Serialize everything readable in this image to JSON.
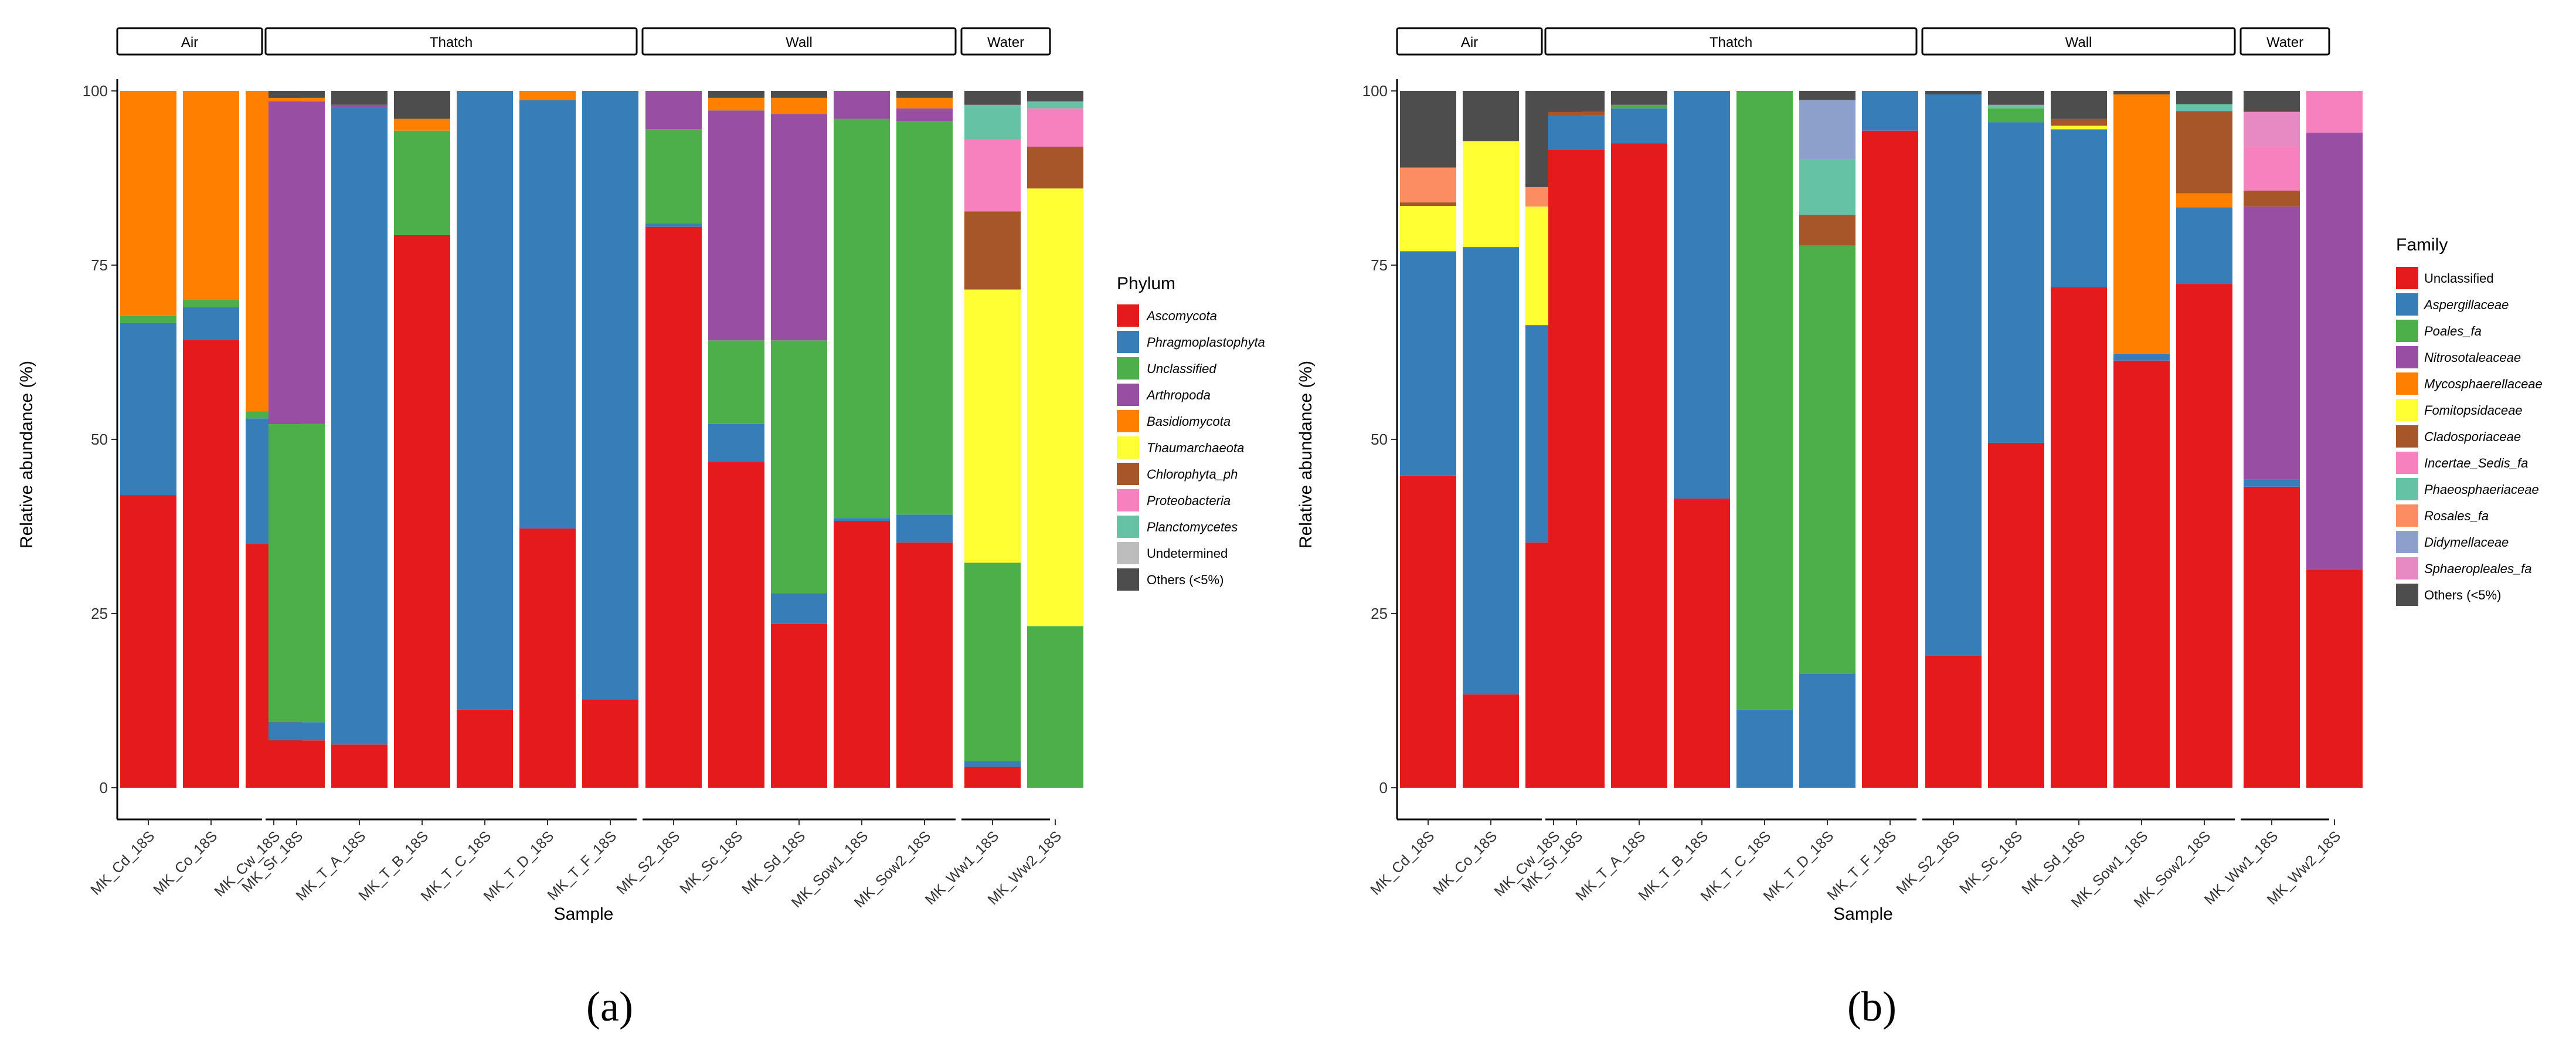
{
  "chart_data": [
    {
      "type": "bar",
      "stacked": true,
      "caption": "(a)",
      "xlabel": "Sample",
      "ylabel": "Relative abundance (%)",
      "ylim": [
        0,
        100
      ],
      "yticks": [
        "0",
        "25",
        "50",
        "75",
        "100"
      ],
      "grid": false,
      "legend_position": "right",
      "legend_title": "Phylum",
      "categories": [
        "Ascomycota",
        "Phragmoplastophyta",
        "Unclassified",
        "Arthropoda",
        "Basidiomycota",
        "Thaumarchaeota",
        "Chlorophyta_ph",
        "Proteobacteria",
        "Planctomycetes",
        "Undetermined",
        "Others (<5%)"
      ],
      "italic_categories": [
        "Ascomycota",
        "Phragmoplastophyta",
        "Unclassified",
        "Arthropoda",
        "Basidiomycota",
        "Thaumarchaeota",
        "Chlorophyta_ph",
        "Proteobacteria",
        "Planctomycetes"
      ],
      "colors": [
        "#e41a1c",
        "#377eb8",
        "#4daf4a",
        "#984ea3",
        "#ff7f00",
        "#ffff33",
        "#a65628",
        "#f781bf",
        "#66c2a5",
        "#bdbdbd",
        "#4d4d4d"
      ],
      "facets": [
        {
          "name": "Air",
          "samples": [
            {
              "name": "MK_Cd_18S",
              "values": [
                42,
                24.7,
                1,
                0,
                32.3,
                0,
                0,
                0,
                0,
                0,
                0
              ]
            },
            {
              "name": "MK_Co_18S",
              "values": [
                64.3,
                4.7,
                1,
                0,
                30,
                0,
                0,
                0,
                0,
                0,
                0
              ]
            },
            {
              "name": "MK_Cw_18S",
              "values": [
                35,
                18,
                1,
                0,
                46,
                0,
                0,
                0,
                0,
                0,
                0
              ]
            }
          ]
        },
        {
          "name": "Thatch",
          "samples": [
            {
              "name": "MK_Sr_18S",
              "values": [
                6.8,
                2.6,
                42.8,
                46.3,
                0.5,
                0,
                0,
                0,
                0,
                0,
                1
              ]
            },
            {
              "name": "MK_T_A_18S",
              "values": [
                6.2,
                91.5,
                0,
                0.3,
                0,
                0,
                0,
                0,
                0,
                0,
                2
              ]
            },
            {
              "name": "MK_T_B_18S",
              "values": [
                79.3,
                0,
                15,
                0,
                1.7,
                0,
                0,
                0,
                0,
                0,
                4
              ]
            },
            {
              "name": "MK_T_C_18S",
              "values": [
                11.2,
                88.8,
                0,
                0,
                0,
                0,
                0,
                0,
                0,
                0,
                0
              ]
            },
            {
              "name": "MK_T_D_18S",
              "values": [
                37.2,
                61.5,
                0,
                0,
                1.3,
                0,
                0,
                0,
                0,
                0,
                0
              ]
            },
            {
              "name": "MK_T_F_18S",
              "values": [
                12.7,
                87.3,
                0,
                0,
                0,
                0,
                0,
                0,
                0,
                0,
                0
              ]
            }
          ]
        },
        {
          "name": "Wall",
          "samples": [
            {
              "name": "MK_S2_18S",
              "values": [
                80.5,
                0.5,
                13.5,
                5.5,
                0,
                0,
                0,
                0,
                0,
                0,
                0
              ]
            },
            {
              "name": "MK_Sc_18S",
              "values": [
                46.8,
                5.4,
                12,
                33,
                1.8,
                0,
                0,
                0,
                0,
                0,
                1
              ]
            },
            {
              "name": "MK_Sd_18S",
              "values": [
                23.5,
                4.4,
                36.3,
                32.5,
                2.3,
                0,
                0,
                0,
                0,
                0,
                1
              ]
            },
            {
              "name": "MK_Sow1_18S",
              "values": [
                38.3,
                0.4,
                57.3,
                4,
                0,
                0,
                0,
                0,
                0,
                0,
                0
              ]
            },
            {
              "name": "MK_Sow2_18S",
              "values": [
                35.2,
                4,
                56.5,
                1.8,
                1.5,
                0,
                0,
                0,
                0,
                0,
                1
              ]
            }
          ]
        },
        {
          "name": "Water",
          "samples": [
            {
              "name": "MK_Ww1_18S",
              "values": [
                3,
                0.8,
                28.5,
                0,
                0,
                39.2,
                11.2,
                10.3,
                5,
                0,
                2
              ]
            },
            {
              "name": "MK_Ww2_18S",
              "values": [
                0,
                0,
                23.2,
                0,
                0,
                62.8,
                6,
                5.5,
                1,
                0,
                1.5
              ]
            }
          ]
        }
      ]
    },
    {
      "type": "bar",
      "stacked": true,
      "caption": "(b)",
      "xlabel": "Sample",
      "ylabel": "Relative abundance (%)",
      "ylim": [
        0,
        100
      ],
      "yticks": [
        "0",
        "25",
        "50",
        "75",
        "100"
      ],
      "grid": false,
      "legend_position": "right",
      "legend_title": "Family",
      "categories": [
        "Unclassified",
        "Aspergillaceae",
        "Poales_fa",
        "Nitrosotaleaceae",
        "Mycosphaerellaceae",
        "Fomitopsidaceae",
        "Cladosporiaceae",
        "Incertae_Sedis_fa",
        "Phaeosphaeriaceae",
        "Rosales_fa",
        "Didymellaceae",
        "Sphaeropleales_fa",
        "Others (<5%)"
      ],
      "italic_categories": [
        "Aspergillaceae",
        "Poales_fa",
        "Nitrosotaleaceae",
        "Mycosphaerellaceae",
        "Fomitopsidaceae",
        "Cladosporiaceae",
        "Incertae_Sedis_fa",
        "Phaeosphaeriaceae",
        "Rosales_fa",
        "Didymellaceae",
        "Sphaeropleales_fa"
      ],
      "colors": [
        "#e41a1c",
        "#377eb8",
        "#4daf4a",
        "#984ea3",
        "#ff7f00",
        "#ffff33",
        "#a65628",
        "#f781bf",
        "#66c2a5",
        "#fc8d62",
        "#8da0cb",
        "#e78ac3",
        "#4d4d4d"
      ],
      "facets": [
        {
          "name": "Air",
          "samples": [
            {
              "name": "MK_Cd_18S",
              "values": [
                44.8,
                32.2,
                0,
                0,
                0,
                6.5,
                0.5,
                0,
                0,
                5,
                0,
                0,
                11
              ]
            },
            {
              "name": "MK_Co_18S",
              "values": [
                13.4,
                64.2,
                0,
                0,
                0,
                15.2,
                0,
                0,
                0,
                0,
                0,
                0,
                7.2
              ]
            },
            {
              "name": "MK_Cw_18S",
              "values": [
                35.2,
                31.2,
                0,
                0,
                0,
                17,
                0,
                0,
                0,
                2.8,
                0,
                0,
                13.8
              ]
            }
          ]
        },
        {
          "name": "Thatch",
          "samples": [
            {
              "name": "MK_Sr_18S",
              "values": [
                91.5,
                5,
                0,
                0,
                0,
                0,
                0.5,
                0,
                0,
                0,
                0,
                0,
                3
              ]
            },
            {
              "name": "MK_T_A_18S",
              "values": [
                92.5,
                5,
                0.5,
                0,
                0,
                0,
                0,
                0,
                0,
                0,
                0,
                0,
                2
              ]
            },
            {
              "name": "MK_T_B_18S",
              "values": [
                41.5,
                58.5,
                0,
                0,
                0,
                0,
                0,
                0,
                0,
                0,
                0,
                0,
                0
              ]
            },
            {
              "name": "MK_T_C_18S",
              "values": [
                0,
                11.2,
                88.8,
                0,
                0,
                0,
                0,
                0,
                0,
                0,
                0,
                0,
                0
              ]
            },
            {
              "name": "MK_T_D_18S",
              "values": [
                0,
                16.4,
                61.4,
                0,
                0,
                0,
                4.4,
                0,
                8,
                0,
                8.5,
                0,
                1.3
              ]
            },
            {
              "name": "MK_T_F_18S",
              "values": [
                94.3,
                5.7,
                0,
                0,
                0,
                0,
                0,
                0,
                0,
                0,
                0,
                0,
                0
              ]
            }
          ]
        },
        {
          "name": "Wall",
          "samples": [
            {
              "name": "MK_S2_18S",
              "values": [
                19,
                80.5,
                0,
                0,
                0,
                0,
                0,
                0,
                0,
                0,
                0,
                0,
                0.5
              ]
            },
            {
              "name": "MK_Sc_18S",
              "values": [
                49.5,
                46,
                2,
                0,
                0,
                0,
                0,
                0,
                0.5,
                0,
                0,
                0,
                2
              ]
            },
            {
              "name": "MK_Sd_18S",
              "values": [
                71.8,
                22.7,
                0,
                0,
                0,
                0.5,
                1,
                0,
                0,
                0,
                0,
                0,
                4
              ]
            },
            {
              "name": "MK_Sow1_18S",
              "values": [
                61.3,
                1,
                0,
                0,
                37.2,
                0,
                0,
                0,
                0,
                0,
                0,
                0,
                0.5
              ]
            },
            {
              "name": "MK_Sow2_18S",
              "values": [
                72.3,
                11,
                0,
                0,
                2,
                0,
                11.8,
                0,
                1,
                0,
                0,
                0,
                1.9
              ]
            }
          ]
        },
        {
          "name": "Water",
          "samples": [
            {
              "name": "MK_Ww1_18S",
              "values": [
                43.2,
                1,
                0,
                39.2,
                0,
                0,
                2.3,
                6.3,
                0,
                0,
                0,
                5,
                3
              ]
            },
            {
              "name": "MK_Ww2_18S",
              "values": [
                31.3,
                0,
                0,
                62.7,
                0,
                0,
                0,
                6,
                0,
                0,
                0,
                0,
                0
              ]
            }
          ]
        }
      ]
    }
  ]
}
